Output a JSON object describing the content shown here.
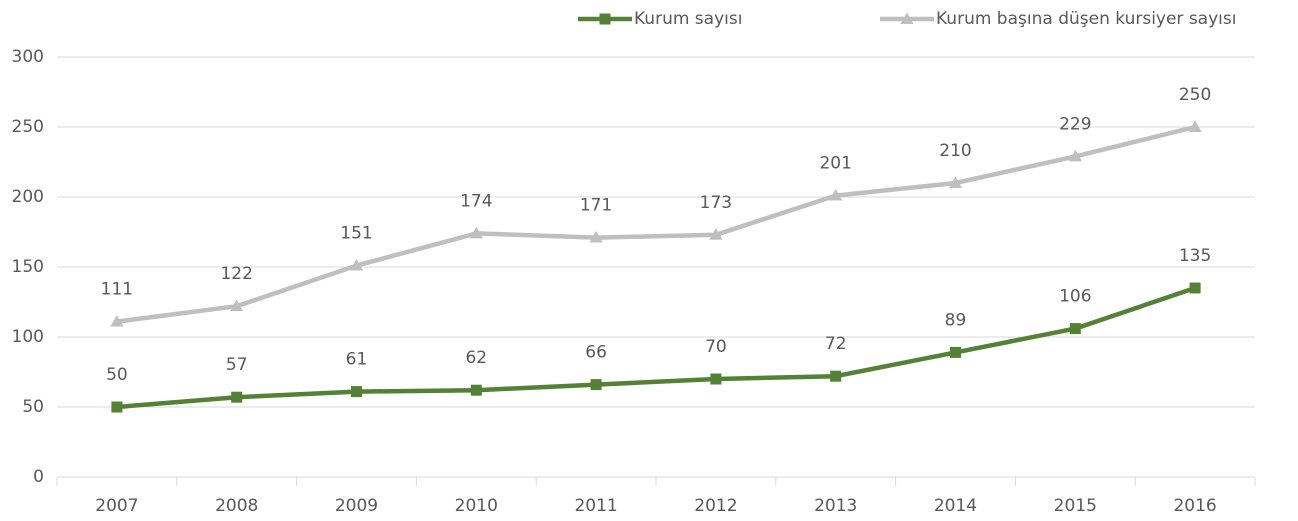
{
  "chart_data": {
    "type": "line",
    "categories": [
      "2007",
      "2008",
      "2009",
      "2010",
      "2011",
      "2012",
      "2013",
      "2014",
      "2015",
      "2016"
    ],
    "series": [
      {
        "name": "Kurum sayısı",
        "color": "#538135",
        "marker": "square",
        "values": [
          50,
          57,
          61,
          62,
          66,
          70,
          72,
          89,
          106,
          135
        ]
      },
      {
        "name": "Kurum başına düşen kursiyer sayısı",
        "color": "#bfbfbf",
        "marker": "triangle",
        "values": [
          111,
          122,
          151,
          174,
          171,
          173,
          201,
          210,
          229,
          250
        ]
      }
    ],
    "ylim": [
      0,
      300
    ],
    "yticks": [
      0,
      50,
      100,
      150,
      200,
      250,
      300
    ],
    "grid": true,
    "legend": "top"
  }
}
